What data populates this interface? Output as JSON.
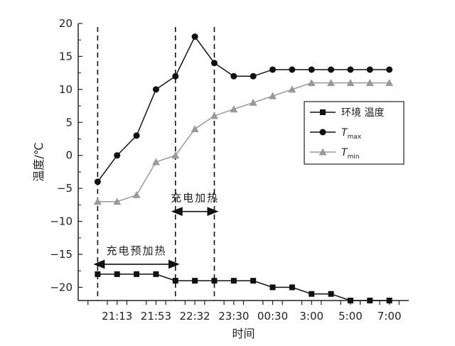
{
  "chart_data": {
    "type": "line",
    "xlabel": "时间",
    "ylabel": "温度/℃",
    "ylim": [
      -22,
      20
    ],
    "yticks": [
      -20,
      -15,
      -10,
      -5,
      0,
      5,
      10,
      15,
      20
    ],
    "x_tick_labels": [
      {
        "x": 2,
        "label": "21:13"
      },
      {
        "x": 6,
        "label": "21:53"
      },
      {
        "x": 10,
        "label": "22:32"
      },
      {
        "x": 14,
        "label": "23:30"
      },
      {
        "x": 18,
        "label": "00:30"
      },
      {
        "x": 22,
        "label": "3:00"
      },
      {
        "x": 26,
        "label": "5:00"
      },
      {
        "x": 30,
        "label": "7:00"
      }
    ],
    "xlim": [
      -2,
      32
    ],
    "series": [
      {
        "name": "环境 温度",
        "marker": "square",
        "color": "#111111",
        "x": [
          0,
          2,
          4,
          6,
          8,
          10,
          12,
          14,
          16,
          18,
          20,
          22,
          24,
          26,
          28,
          30
        ],
        "values": [
          -18,
          -18,
          -18,
          -18,
          -19,
          -19,
          -19,
          -19,
          -19,
          -20,
          -20,
          -21,
          -21,
          -22,
          -22,
          -22
        ]
      },
      {
        "name": "T",
        "subscript": "max",
        "marker": "circle",
        "color": "#111111",
        "x": [
          0,
          2,
          4,
          6,
          8,
          10,
          12,
          14,
          16,
          18,
          20,
          22,
          24,
          26,
          28,
          30
        ],
        "values": [
          -4,
          0,
          3,
          10,
          12,
          18,
          14,
          12,
          12,
          13,
          13,
          13,
          13,
          13,
          13,
          13
        ]
      },
      {
        "name": "T",
        "subscript": "min",
        "marker": "triangle",
        "color": "#999999",
        "x": [
          0,
          2,
          4,
          6,
          8,
          10,
          12,
          14,
          16,
          18,
          20,
          22,
          24,
          26,
          28,
          30
        ],
        "values": [
          -7,
          -7,
          -6,
          -1,
          0,
          4,
          6,
          7,
          8,
          9,
          10,
          11,
          11,
          11,
          11,
          11
        ]
      }
    ],
    "vertical_lines": [
      0,
      8,
      12
    ],
    "annotations": [
      {
        "text": "充电加热",
        "from": 8,
        "to": 12,
        "y": -8.5
      },
      {
        "text": "充电预加热",
        "from": 0,
        "to": 8,
        "y": -16.5
      }
    ],
    "legend_placement": "right"
  }
}
